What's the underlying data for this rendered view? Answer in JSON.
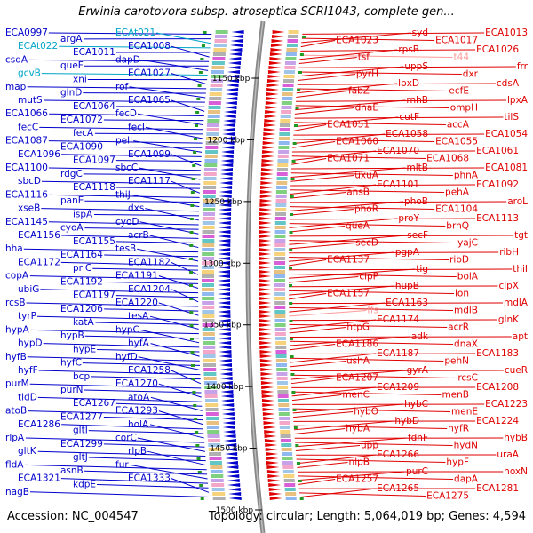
{
  "title": "Erwinia carotovora subsp. atroseptica SCRI1043, complete gen...",
  "footer": {
    "accession": "Accession: NC_004547",
    "summary": "Topology: circular; Length: 5,064,019 bp; Genes: 4,594"
  },
  "colors": {
    "reverse_strand": "#0000cc",
    "forward_strand": "#e00000",
    "rna": "#00a5c8",
    "faded": "#ff9999",
    "backbone": "#888888"
  },
  "ticks": [
    "1150 kbp",
    "1200 kbp",
    "1250 kbp",
    "1300 kbp",
    "1350 kbp",
    "1400 kbp",
    "1450 kbp",
    "1500 kbp"
  ],
  "left_labels": [
    {
      "text": "ECA0997",
      "kind": "rev"
    },
    {
      "text": "argA",
      "kind": "rev"
    },
    {
      "text": "ECAt021",
      "kind": "rna"
    },
    {
      "text": "ECAt022",
      "kind": "rna"
    },
    {
      "text": "ECA1011",
      "kind": "rev"
    },
    {
      "text": "ECA1008",
      "kind": "rev"
    },
    {
      "text": "csdA",
      "kind": "rev"
    },
    {
      "text": "queF",
      "kind": "rev"
    },
    {
      "text": "dapD",
      "kind": "rev"
    },
    {
      "text": "gcvB",
      "kind": "rna"
    },
    {
      "text": "xni",
      "kind": "rev"
    },
    {
      "text": "ECA1027",
      "kind": "rev"
    },
    {
      "text": "map",
      "kind": "rev"
    },
    {
      "text": "glnD",
      "kind": "rev"
    },
    {
      "text": "rof",
      "kind": "rev"
    },
    {
      "text": "mutS",
      "kind": "rev"
    },
    {
      "text": "ECA1064",
      "kind": "rev"
    },
    {
      "text": "ECA1065",
      "kind": "rev"
    },
    {
      "text": "ECA1066",
      "kind": "rev"
    },
    {
      "text": "ECA1072",
      "kind": "rev"
    },
    {
      "text": "fecD",
      "kind": "rev"
    },
    {
      "text": "fecC",
      "kind": "rev"
    },
    {
      "text": "fecA",
      "kind": "rev"
    },
    {
      "text": "fecI",
      "kind": "rev"
    },
    {
      "text": "ECA1087",
      "kind": "rev"
    },
    {
      "text": "ECA1090",
      "kind": "rev"
    },
    {
      "text": "pelI",
      "kind": "rev"
    },
    {
      "text": "ECA1096",
      "kind": "rev"
    },
    {
      "text": "ECA1097",
      "kind": "rev"
    },
    {
      "text": "ECA1099",
      "kind": "rev"
    },
    {
      "text": "ECA1100",
      "kind": "rev"
    },
    {
      "text": "rdgC",
      "kind": "rev"
    },
    {
      "text": "sbcC",
      "kind": "rev"
    },
    {
      "text": "sbcD",
      "kind": "rev"
    },
    {
      "text": "ECA1118",
      "kind": "rev"
    },
    {
      "text": "ECA1117",
      "kind": "rev"
    },
    {
      "text": "ECA1116",
      "kind": "rev"
    },
    {
      "text": "panE",
      "kind": "rev"
    },
    {
      "text": "thiJ",
      "kind": "rev"
    },
    {
      "text": "xseB",
      "kind": "rev"
    },
    {
      "text": "ispA",
      "kind": "rev"
    },
    {
      "text": "dxs",
      "kind": "rev"
    },
    {
      "text": "ECA1145",
      "kind": "rev"
    },
    {
      "text": "cyoA",
      "kind": "rev"
    },
    {
      "text": "cyoD",
      "kind": "rev"
    },
    {
      "text": "ECA1156",
      "kind": "rev"
    },
    {
      "text": "ECA1155",
      "kind": "rev"
    },
    {
      "text": "acrB",
      "kind": "rev"
    },
    {
      "text": "hha",
      "kind": "rev"
    },
    {
      "text": "ECA1164",
      "kind": "rev"
    },
    {
      "text": "tesB",
      "kind": "rev"
    },
    {
      "text": "ECA1172",
      "kind": "rev"
    },
    {
      "text": "priC",
      "kind": "rev"
    },
    {
      "text": "ECA1182",
      "kind": "rev"
    },
    {
      "text": "copA",
      "kind": "rev"
    },
    {
      "text": "ECA1192",
      "kind": "rev"
    },
    {
      "text": "ECA1191",
      "kind": "rev"
    },
    {
      "text": "ubiG",
      "kind": "rev"
    },
    {
      "text": "ECA1197",
      "kind": "rev"
    },
    {
      "text": "ECA1204",
      "kind": "rev"
    },
    {
      "text": "rcsB",
      "kind": "rev"
    },
    {
      "text": "ECA1206",
      "kind": "rev"
    },
    {
      "text": "ECA1220",
      "kind": "rev"
    },
    {
      "text": "tyrP",
      "kind": "rev"
    },
    {
      "text": "katA",
      "kind": "rev"
    },
    {
      "text": "tesA",
      "kind": "rev"
    },
    {
      "text": "hypA",
      "kind": "rev"
    },
    {
      "text": "hypB",
      "kind": "rev"
    },
    {
      "text": "hypC",
      "kind": "rev"
    },
    {
      "text": "hypD",
      "kind": "rev"
    },
    {
      "text": "hypE",
      "kind": "rev"
    },
    {
      "text": "hyfA",
      "kind": "rev"
    },
    {
      "text": "hyfB",
      "kind": "rev"
    },
    {
      "text": "hyfC",
      "kind": "rev"
    },
    {
      "text": "hyfD",
      "kind": "rev"
    },
    {
      "text": "hyfF",
      "kind": "rev"
    },
    {
      "text": "bcp",
      "kind": "rev"
    },
    {
      "text": "ECA1258",
      "kind": "rev"
    },
    {
      "text": "purM",
      "kind": "rev"
    },
    {
      "text": "purN",
      "kind": "rev"
    },
    {
      "text": "ECA1270",
      "kind": "rev"
    },
    {
      "text": "tldD",
      "kind": "rev"
    },
    {
      "text": "ECA1267",
      "kind": "rev"
    },
    {
      "text": "atoA",
      "kind": "rev"
    },
    {
      "text": "atoB",
      "kind": "rev"
    },
    {
      "text": "ECA1277",
      "kind": "rev"
    },
    {
      "text": "ECA1293",
      "kind": "rev"
    },
    {
      "text": "ECA1286",
      "kind": "rev"
    },
    {
      "text": "gltI",
      "kind": "rev"
    },
    {
      "text": "holA",
      "kind": "rev"
    },
    {
      "text": "rlpA",
      "kind": "rev"
    },
    {
      "text": "ECA1299",
      "kind": "rev"
    },
    {
      "text": "corC",
      "kind": "rev"
    },
    {
      "text": "gltK",
      "kind": "rev"
    },
    {
      "text": "gltJ",
      "kind": "rev"
    },
    {
      "text": "rlpB",
      "kind": "rev"
    },
    {
      "text": "fldA",
      "kind": "rev"
    },
    {
      "text": "asnB",
      "kind": "rev"
    },
    {
      "text": "fur",
      "kind": "rev"
    },
    {
      "text": "ECA1321",
      "kind": "rev"
    },
    {
      "text": "kdpE",
      "kind": "rev"
    },
    {
      "text": "ECA1333",
      "kind": "rev"
    },
    {
      "text": "nagB",
      "kind": "rev"
    }
  ],
  "right_labels": [
    {
      "text": "ECA1013",
      "kind": "fwd"
    },
    {
      "text": "ECA1017",
      "kind": "fwd"
    },
    {
      "text": "syd",
      "kind": "fwd"
    },
    {
      "text": "ECA1023",
      "kind": "fwd"
    },
    {
      "text": "ECA1026",
      "kind": "fwd"
    },
    {
      "text": "t44",
      "kind": "faded"
    },
    {
      "text": "rpsB",
      "kind": "fwd"
    },
    {
      "text": "tsf",
      "kind": "fwd"
    },
    {
      "text": "frr",
      "kind": "fwd"
    },
    {
      "text": "dxr",
      "kind": "fwd"
    },
    {
      "text": "uppS",
      "kind": "fwd"
    },
    {
      "text": "pyrH",
      "kind": "fwd"
    },
    {
      "text": "cdsA",
      "kind": "fwd"
    },
    {
      "text": "ecfE",
      "kind": "fwd"
    },
    {
      "text": "lpxD",
      "kind": "fwd"
    },
    {
      "text": "fabZ",
      "kind": "fwd"
    },
    {
      "text": "lpxA",
      "kind": "fwd"
    },
    {
      "text": "ompH",
      "kind": "fwd"
    },
    {
      "text": "rnhB",
      "kind": "fwd"
    },
    {
      "text": "dnaE",
      "kind": "fwd"
    },
    {
      "text": "tilS",
      "kind": "fwd"
    },
    {
      "text": "accA",
      "kind": "fwd"
    },
    {
      "text": "cutF",
      "kind": "fwd"
    },
    {
      "text": "ECA1051",
      "kind": "fwd"
    },
    {
      "text": "ECA1054",
      "kind": "fwd"
    },
    {
      "text": "ECA1055",
      "kind": "fwd"
    },
    {
      "text": "ECA1058",
      "kind": "fwd"
    },
    {
      "text": "ECA1060",
      "kind": "fwd"
    },
    {
      "text": "ECA1061",
      "kind": "fwd"
    },
    {
      "text": "ECA1068",
      "kind": "fwd"
    },
    {
      "text": "ECA1070",
      "kind": "fwd"
    },
    {
      "text": "ECA1071",
      "kind": "fwd"
    },
    {
      "text": "ECA1081",
      "kind": "fwd"
    },
    {
      "text": "phnA",
      "kind": "fwd"
    },
    {
      "text": "mltB",
      "kind": "fwd"
    },
    {
      "text": "uxuA",
      "kind": "fwd"
    },
    {
      "text": "ECA1092",
      "kind": "fwd"
    },
    {
      "text": "pehA",
      "kind": "fwd"
    },
    {
      "text": "ECA1101",
      "kind": "fwd"
    },
    {
      "text": "ansB",
      "kind": "fwd"
    },
    {
      "text": "aroL",
      "kind": "fwd"
    },
    {
      "text": "ECA1104",
      "kind": "fwd"
    },
    {
      "text": "phoB",
      "kind": "fwd"
    },
    {
      "text": "phoR",
      "kind": "fwd"
    },
    {
      "text": "ECA1113",
      "kind": "fwd"
    },
    {
      "text": "brnQ",
      "kind": "fwd"
    },
    {
      "text": "proY",
      "kind": "fwd"
    },
    {
      "text": "queA",
      "kind": "fwd"
    },
    {
      "text": "tgt",
      "kind": "fwd"
    },
    {
      "text": "yajC",
      "kind": "fwd"
    },
    {
      "text": "secF",
      "kind": "fwd"
    },
    {
      "text": "secD",
      "kind": "fwd"
    },
    {
      "text": "ribH",
      "kind": "fwd"
    },
    {
      "text": "ribD",
      "kind": "fwd"
    },
    {
      "text": "pgpA",
      "kind": "fwd"
    },
    {
      "text": "ECA1137",
      "kind": "fwd"
    },
    {
      "text": "thiI",
      "kind": "fwd"
    },
    {
      "text": "bolA",
      "kind": "fwd"
    },
    {
      "text": "tig",
      "kind": "fwd"
    },
    {
      "text": "clpP",
      "kind": "fwd"
    },
    {
      "text": "clpX",
      "kind": "fwd"
    },
    {
      "text": "lon",
      "kind": "fwd"
    },
    {
      "text": "hupB",
      "kind": "fwd"
    },
    {
      "text": "ECA1157",
      "kind": "fwd"
    },
    {
      "text": "mdlA",
      "kind": "fwd"
    },
    {
      "text": "mdlB",
      "kind": "fwd"
    },
    {
      "text": "ECA1163",
      "kind": "fwd"
    },
    {
      "text": "ffs",
      "kind": "faded"
    },
    {
      "text": "glnK",
      "kind": "fwd"
    },
    {
      "text": "acrR",
      "kind": "fwd"
    },
    {
      "text": "ECA1174",
      "kind": "fwd"
    },
    {
      "text": "htpG",
      "kind": "fwd"
    },
    {
      "text": "apt",
      "kind": "fwd"
    },
    {
      "text": "dnaX",
      "kind": "fwd"
    },
    {
      "text": "adk",
      "kind": "fwd"
    },
    {
      "text": "ECA1186",
      "kind": "fwd"
    },
    {
      "text": "ECA1183",
      "kind": "fwd"
    },
    {
      "text": "pehN",
      "kind": "fwd"
    },
    {
      "text": "ECA1187",
      "kind": "fwd"
    },
    {
      "text": "ushA",
      "kind": "fwd"
    },
    {
      "text": "cueR",
      "kind": "fwd"
    },
    {
      "text": "rcsC",
      "kind": "fwd"
    },
    {
      "text": "gyrA",
      "kind": "fwd"
    },
    {
      "text": "ECA1207",
      "kind": "fwd"
    },
    {
      "text": "ECA1208",
      "kind": "fwd"
    },
    {
      "text": "menB",
      "kind": "fwd"
    },
    {
      "text": "ECA1209",
      "kind": "fwd"
    },
    {
      "text": "menC",
      "kind": "fwd"
    },
    {
      "text": "ECA1223",
      "kind": "fwd"
    },
    {
      "text": "menE",
      "kind": "fwd"
    },
    {
      "text": "hybC",
      "kind": "fwd"
    },
    {
      "text": "hybO",
      "kind": "fwd"
    },
    {
      "text": "ECA1224",
      "kind": "fwd"
    },
    {
      "text": "hyfR",
      "kind": "fwd"
    },
    {
      "text": "hybD",
      "kind": "fwd"
    },
    {
      "text": "hybA",
      "kind": "fwd"
    },
    {
      "text": "hybB",
      "kind": "fwd"
    },
    {
      "text": "hydN",
      "kind": "fwd"
    },
    {
      "text": "fdhF",
      "kind": "fwd"
    },
    {
      "text": "upp",
      "kind": "fwd"
    },
    {
      "text": "uraA",
      "kind": "fwd"
    },
    {
      "text": "hypF",
      "kind": "fwd"
    },
    {
      "text": "ECA1266",
      "kind": "fwd"
    },
    {
      "text": "nlpB",
      "kind": "fwd"
    },
    {
      "text": "hoxN",
      "kind": "fwd"
    },
    {
      "text": "dapA",
      "kind": "fwd"
    },
    {
      "text": "purC",
      "kind": "fwd"
    },
    {
      "text": "ECA1257",
      "kind": "fwd"
    },
    {
      "text": "ECA1281",
      "kind": "fwd"
    },
    {
      "text": "ECA1275",
      "kind": "fwd"
    },
    {
      "text": "ECA1265",
      "kind": "fwd"
    }
  ]
}
